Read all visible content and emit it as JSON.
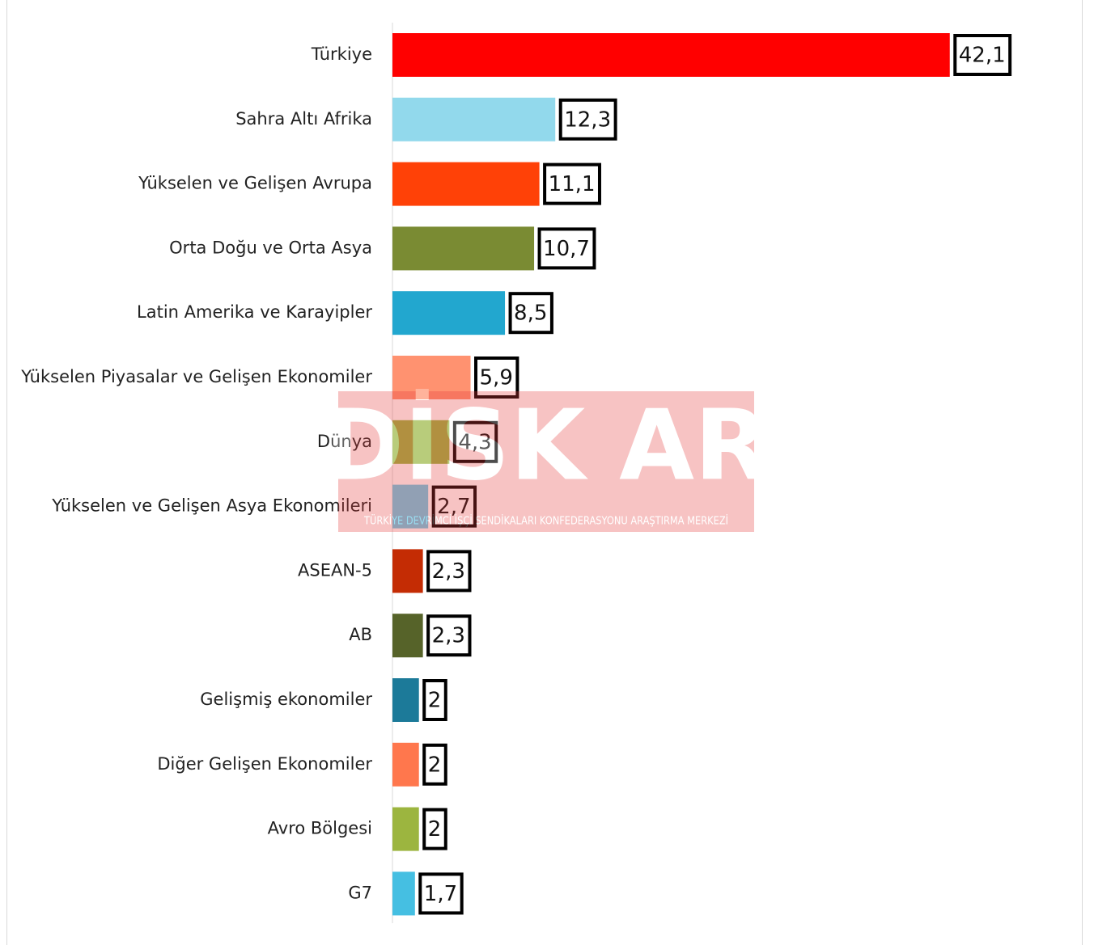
{
  "chart_data": {
    "type": "barh",
    "categories": [
      "Türkiye",
      "Sahra Altı Afrika",
      "Yükselen ve Gelişen Avrupa",
      "Orta Doğu ve Orta Asya",
      "Latin Amerika ve Karayipler",
      "Yükselen Piyasalar ve Gelişen Ekonomiler",
      "Dünya",
      "Yükselen ve Gelişen Asya Ekonomileri",
      "ASEAN-5",
      "AB",
      "Gelişmiş ekonomiler",
      "Diğer Gelişen Ekonomiler",
      "Avro Bölgesi",
      "G7"
    ],
    "values": [
      42.1,
      12.3,
      11.1,
      10.7,
      8.5,
      5.9,
      4.3,
      2.7,
      2.3,
      2.3,
      2,
      2,
      2,
      1.7
    ],
    "value_labels": [
      "42,1",
      "12,3",
      "11,1",
      "10,7",
      "8,5",
      "5,9",
      "4,3",
      "2,7",
      "2,3",
      "2,3",
      "2",
      "2",
      "2",
      "1,7"
    ],
    "colors": [
      "#ff0000",
      "#92d9ec",
      "#ff4107",
      "#7a8b33",
      "#22a7cf",
      "#ff9270",
      "#9ab642",
      "#6dcdea",
      "#c42c04",
      "#566329",
      "#1c7a99",
      "#ff774d",
      "#9cb53f",
      "#45bfe2"
    ],
    "xlim": [
      0,
      50
    ],
    "watermark": {
      "logo": "DİSK AR",
      "subtitle": "TÜRKİYE DEVRİMCİ İŞÇİ SENDİKALARI KONFEDERASYONU ARAŞTIRMA MERKEZİ"
    }
  }
}
